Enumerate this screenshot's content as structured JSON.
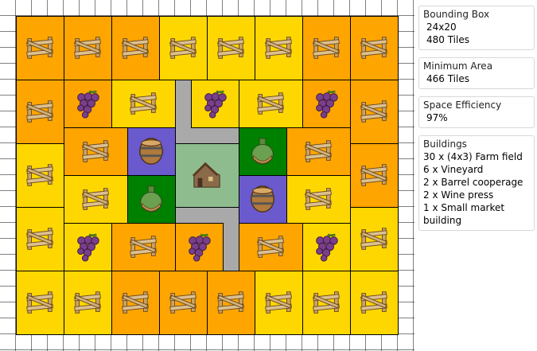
{
  "panels": [
    {
      "title": "Bounding Box",
      "lines": [
        "24x20",
        "480 Tiles"
      ]
    },
    {
      "title": "Minimum Area",
      "lines": [
        "466 Tiles"
      ]
    },
    {
      "title": "Space Efficiency",
      "lines": [
        "97%"
      ]
    },
    {
      "title": "Buildings",
      "lines": [
        "30 x (4x3) Farm field",
        "6 x Vineyard",
        "2 x Barrel cooperage",
        "2 x Wine press",
        "1 x Small market building"
      ]
    }
  ]
}
